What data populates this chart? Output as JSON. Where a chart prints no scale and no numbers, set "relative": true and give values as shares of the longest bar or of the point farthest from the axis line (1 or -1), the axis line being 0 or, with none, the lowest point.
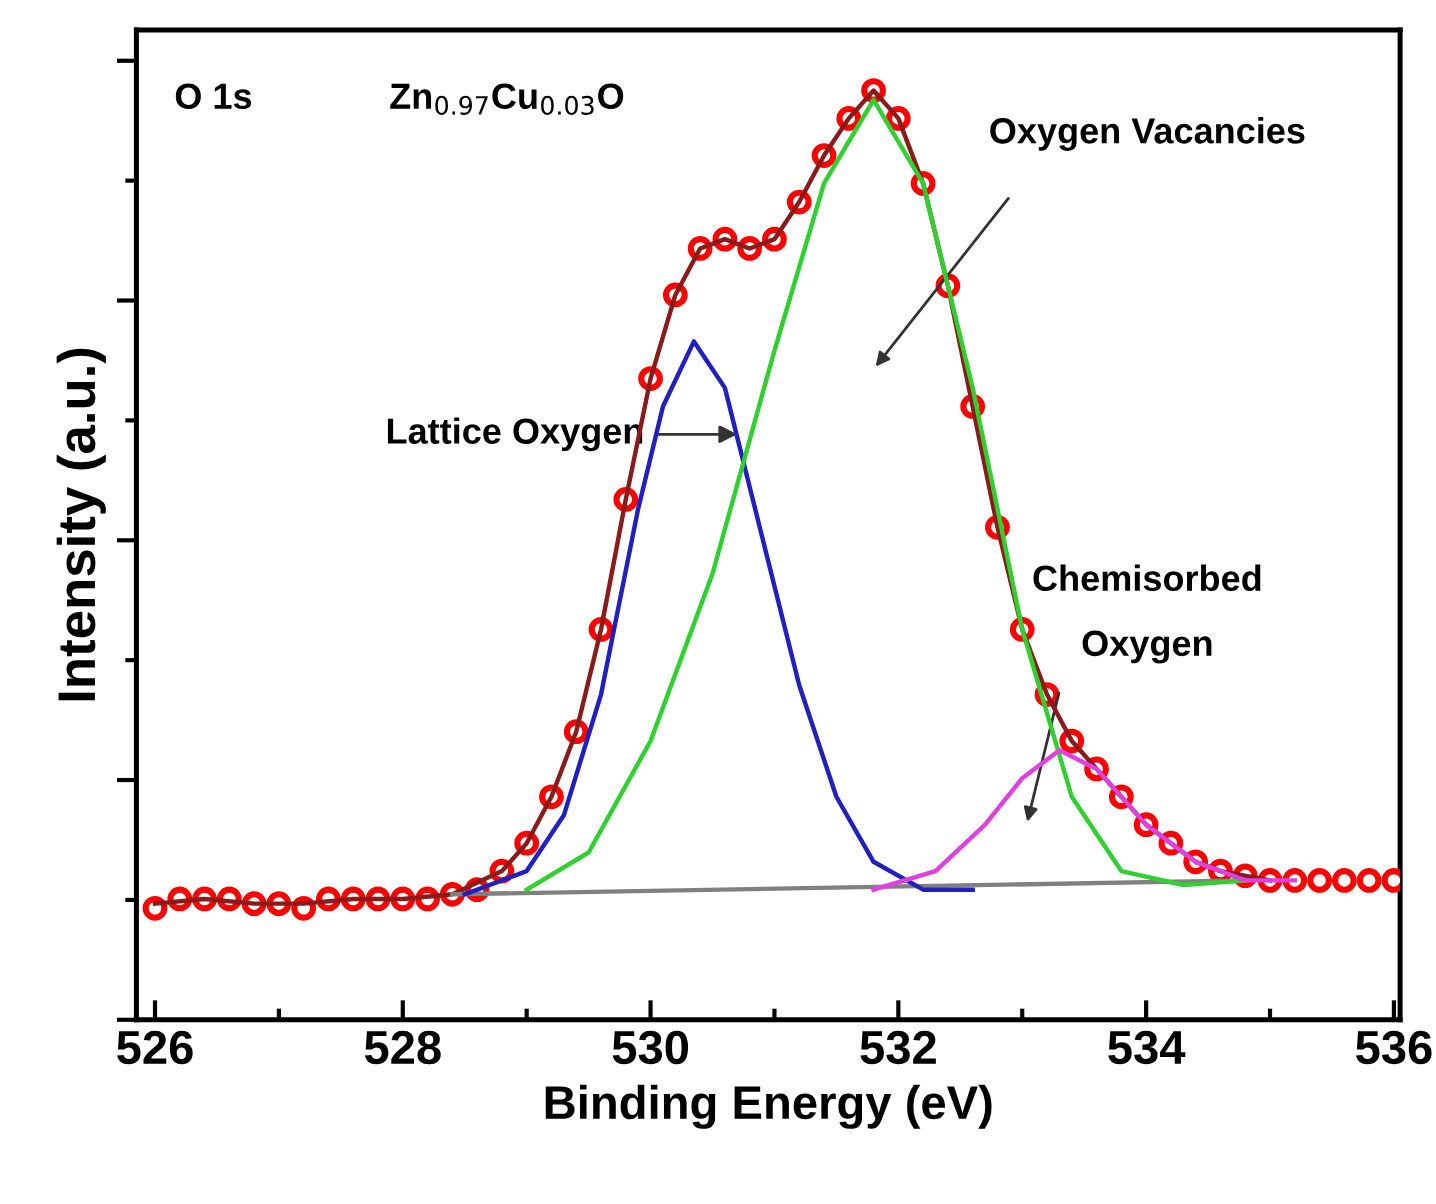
{
  "chart_data": {
    "type": "scatter",
    "relative": true,
    "xlabel": "Binding Energy (eV)",
    "ylabel": "Intensity (a.u.)",
    "xlim": [
      525.85,
      536.05
    ],
    "xticks": [
      526,
      528,
      530,
      532,
      534,
      536
    ],
    "tick_labels": "x",
    "grid": false,
    "series": [
      {
        "type": "line",
        "color": "#8b1a1a",
        "x": [
          526.0,
          526.4,
          526.8,
          527.2,
          527.6,
          528.0,
          528.4,
          528.8,
          529.0,
          529.2,
          529.4,
          529.6,
          529.8,
          530.0,
          530.2,
          530.4,
          530.6,
          530.8,
          531.0,
          531.2,
          531.4,
          531.6,
          531.8,
          532.0,
          532.2,
          532.4,
          532.6,
          532.8,
          533.0,
          533.2,
          533.4,
          533.6,
          533.8,
          534.0,
          534.2,
          534.4,
          534.6,
          535.0
        ],
        "values": [
          0.125,
          0.13,
          0.125,
          0.125,
          0.13,
          0.13,
          0.135,
          0.16,
          0.19,
          0.24,
          0.31,
          0.42,
          0.56,
          0.69,
          0.78,
          0.83,
          0.84,
          0.83,
          0.84,
          0.88,
          0.93,
          0.97,
          1.0,
          0.97,
          0.9,
          0.79,
          0.66,
          0.53,
          0.42,
          0.35,
          0.3,
          0.27,
          0.24,
          0.21,
          0.19,
          0.17,
          0.16,
          0.15
        ]
      },
      {
        "type": "line",
        "color": "#808080",
        "x": [
          528.4,
          534.8
        ],
        "values": [
          0.135,
          0.15
        ]
      },
      {
        "type": "line",
        "color": "#2020c0",
        "x": [
          528.5,
          529.0,
          529.3,
          529.6,
          529.9,
          530.1,
          530.35,
          530.6,
          530.9,
          531.2,
          531.5,
          531.8,
          532.2,
          532.6
        ],
        "values": [
          0.135,
          0.16,
          0.22,
          0.35,
          0.55,
          0.66,
          0.73,
          0.68,
          0.52,
          0.36,
          0.24,
          0.17,
          0.14,
          0.14
        ]
      },
      {
        "type": "line",
        "color": "#30d030",
        "x": [
          529.0,
          529.5,
          530.0,
          530.5,
          531.0,
          531.4,
          531.8,
          532.2,
          532.6,
          533.0,
          533.4,
          533.8,
          534.3,
          534.8
        ],
        "values": [
          0.14,
          0.18,
          0.3,
          0.48,
          0.72,
          0.9,
          0.99,
          0.9,
          0.68,
          0.42,
          0.24,
          0.16,
          0.145,
          0.15
        ]
      },
      {
        "type": "line",
        "color": "#e040e0",
        "x": [
          531.8,
          532.3,
          532.7,
          533.0,
          533.3,
          533.6,
          534.0,
          534.4,
          534.8,
          535.2
        ],
        "values": [
          0.14,
          0.16,
          0.21,
          0.26,
          0.29,
          0.27,
          0.21,
          0.17,
          0.15,
          0.15
        ]
      },
      {
        "marker": "circle",
        "color": "#ff0000",
        "x": [
          526.0,
          526.2,
          526.4,
          526.6,
          526.8,
          527.0,
          527.2,
          527.4,
          527.6,
          527.8,
          528.0,
          528.2,
          528.4,
          528.6,
          528.8,
          529.0,
          529.2,
          529.4,
          529.6,
          529.8,
          530.0,
          530.2,
          530.4,
          530.6,
          530.8,
          531.0,
          531.2,
          531.4,
          531.6,
          531.8,
          532.0,
          532.2,
          532.4,
          532.6,
          532.8,
          533.0,
          533.2,
          533.4,
          533.6,
          533.8,
          534.0,
          534.2,
          534.4,
          534.6,
          534.8,
          535.0,
          535.2,
          535.4,
          535.6,
          535.8,
          536.0
        ],
        "values": [
          0.12,
          0.13,
          0.13,
          0.13,
          0.125,
          0.125,
          0.12,
          0.13,
          0.13,
          0.13,
          0.13,
          0.13,
          0.135,
          0.14,
          0.16,
          0.19,
          0.24,
          0.31,
          0.42,
          0.56,
          0.69,
          0.78,
          0.83,
          0.84,
          0.83,
          0.84,
          0.88,
          0.93,
          0.97,
          1.0,
          0.97,
          0.9,
          0.79,
          0.66,
          0.53,
          0.42,
          0.35,
          0.3,
          0.27,
          0.24,
          0.21,
          0.19,
          0.17,
          0.16,
          0.155,
          0.15,
          0.15,
          0.15,
          0.15,
          0.15,
          0.15
        ]
      }
    ],
    "annotations": [
      "O 1s",
      "Zn$_{0.97}$Cu$_{0.03}$O",
      {
        "text": "Lattice Oxygen",
        "x": 530.7,
        "y": 0.63
      },
      "Oxygen Vacancies",
      "Chemisorbed\nOxygen"
    ]
  }
}
